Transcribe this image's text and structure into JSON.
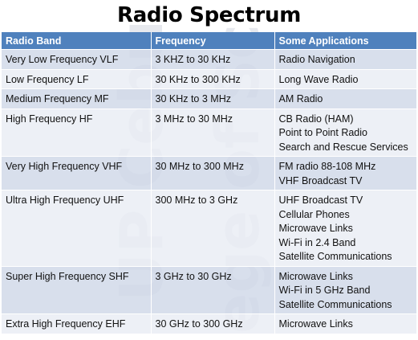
{
  "title": "Radio Spectrum",
  "watermark": {
    "line1": "UP Cebu",
    "line2": "ege of Sc"
  },
  "table": {
    "headers": [
      "Radio Band",
      "Frequency",
      "Some Applications"
    ],
    "rows": [
      {
        "band": "Very Low Frequency VLF",
        "frequency": "3 KHZ to 30 KHz",
        "applications": [
          "Radio Navigation"
        ]
      },
      {
        "band": "Low Frequency  LF",
        "frequency": "30 KHz to 300 KHz",
        "applications": [
          "Long Wave Radio"
        ]
      },
      {
        "band": "Medium Frequency MF",
        "frequency": "30 KHz to 3 MHz",
        "applications": [
          "AM Radio"
        ]
      },
      {
        "band": "High Frequency HF",
        "frequency": "3 MHz to 30 MHz",
        "applications": [
          "CB Radio (HAM)",
          "Point to Point Radio",
          "Search and Rescue Services"
        ]
      },
      {
        "band": "Very High Frequency  VHF",
        "frequency": "30 MHz to 300 MHz",
        "applications": [
          "FM radio 88-108 MHz",
          "VHF Broadcast TV"
        ]
      },
      {
        "band": "Ultra High Frequency UHF",
        "frequency": "300 MHz to 3 GHz",
        "applications": [
          "UHF Broadcast TV",
          "Cellular Phones",
          "Microwave Links",
          "Wi-Fi in 2.4 Band",
          "Satellite Communications"
        ]
      },
      {
        "band": "Super High Frequency SHF",
        "frequency": "3 GHz to 30 GHz",
        "applications": [
          "Microwave Links",
          "Wi-Fi in 5 GHz Band",
          "Satellite Communications"
        ]
      },
      {
        "band": "Extra High Frequency EHF",
        "frequency": "30 GHz to 300 GHz",
        "applications": [
          "Microwave Links"
        ]
      }
    ]
  },
  "colors": {
    "header": "#4f81bd",
    "row_dark": "#d0d8e8",
    "row_light": "#e9edf4",
    "watermark": "#e7e9ee"
  }
}
